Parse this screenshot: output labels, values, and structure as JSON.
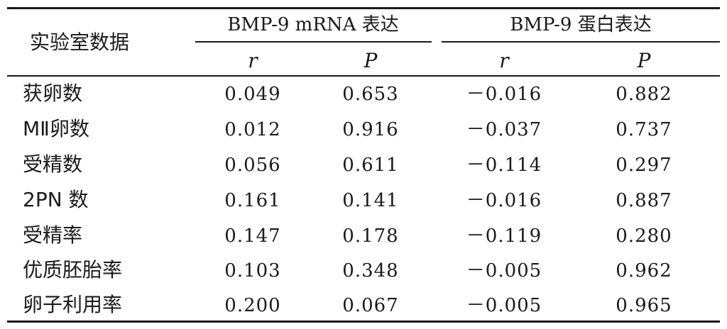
{
  "table": {
    "corner_header": "实验室数据",
    "groups": [
      {
        "title": "BMP-9 mRNA 表达",
        "sub": [
          "r",
          "P"
        ]
      },
      {
        "title": "BMP-9 蛋白表达",
        "sub": [
          "r",
          "P"
        ]
      }
    ],
    "rows": [
      {
        "label": "获卵数",
        "values": [
          "0.049",
          "0.653",
          "－0.016",
          "0.882"
        ]
      },
      {
        "label": "MⅡ卵数",
        "values": [
          "0.012",
          "0.916",
          "－0.037",
          "0.737"
        ]
      },
      {
        "label": "受精数",
        "values": [
          "0.056",
          "0.611",
          "－0.114",
          "0.297"
        ]
      },
      {
        "label": "2PN 数",
        "values": [
          "0.161",
          "0.141",
          "－0.016",
          "0.887"
        ]
      },
      {
        "label": "受精率",
        "values": [
          "0.147",
          "0.178",
          "－0.119",
          "0.280"
        ]
      },
      {
        "label": "优质胚胎率",
        "values": [
          "0.103",
          "0.348",
          "－0.005",
          "0.962"
        ]
      },
      {
        "label": "卵子利用率",
        "values": [
          "0.200",
          "0.067",
          "－0.005",
          "0.965"
        ]
      }
    ]
  }
}
